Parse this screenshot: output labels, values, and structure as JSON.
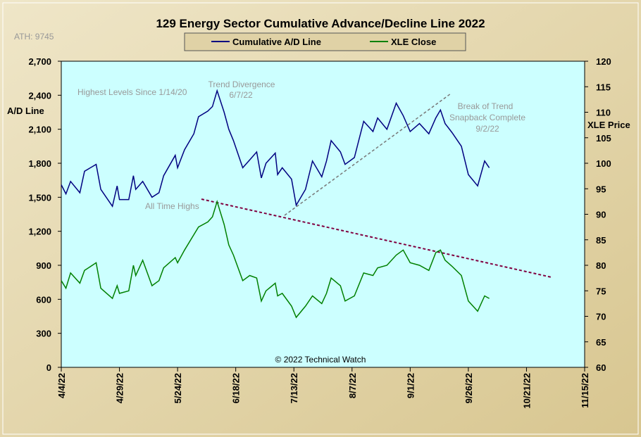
{
  "chart_data": {
    "type": "line",
    "title": "129 Energy Sector Cumulative Advance/Decline Line 2022",
    "ath": "ATH: 9745",
    "ylabel": "A/D Line",
    "y2label": "XLE Price",
    "copyright": "© 2022 Technical Watch",
    "annotations": [
      "Highest Levels  Since 1/14/20",
      "Trend  Divergence",
      "6/7/22",
      "All Time Highs",
      "Break of Trend",
      "Snapback Complete",
      "9/2/22"
    ],
    "x": [
      "2022-04-04",
      "2022-04-06",
      "2022-04-08",
      "2022-04-12",
      "2022-04-14",
      "2022-04-19",
      "2022-04-21",
      "2022-04-26",
      "2022-04-28",
      "2022-04-29",
      "2022-05-03",
      "2022-05-05",
      "2022-05-06",
      "2022-05-09",
      "2022-05-13",
      "2022-05-16",
      "2022-05-18",
      "2022-05-23",
      "2022-05-24",
      "2022-05-27",
      "2022-05-31",
      "2022-06-02",
      "2022-06-06",
      "2022-06-08",
      "2022-06-10",
      "2022-06-13",
      "2022-06-15",
      "2022-06-17",
      "2022-06-21",
      "2022-06-24",
      "2022-06-27",
      "2022-06-29",
      "2022-07-01",
      "2022-07-05",
      "2022-07-06",
      "2022-07-08",
      "2022-07-12",
      "2022-07-14",
      "2022-07-18",
      "2022-07-21",
      "2022-07-25",
      "2022-07-27",
      "2022-07-29",
      "2022-08-02",
      "2022-08-04",
      "2022-08-08",
      "2022-08-12",
      "2022-08-16",
      "2022-08-18",
      "2022-08-22",
      "2022-08-26",
      "2022-08-29",
      "2022-09-01",
      "2022-09-05",
      "2022-09-09",
      "2022-09-12",
      "2022-09-14",
      "2022-09-16",
      "2022-09-19",
      "2022-09-23",
      "2022-09-26",
      "2022-09-30",
      "2022-10-03",
      "2022-10-05"
    ],
    "series": [
      {
        "name": "Cumulative A/D Line",
        "color": "#000080",
        "values": [
          1610,
          1530,
          1640,
          1540,
          1730,
          1790,
          1570,
          1420,
          1600,
          1480,
          1480,
          1690,
          1570,
          1640,
          1500,
          1540,
          1690,
          1870,
          1760,
          1920,
          2060,
          2210,
          2260,
          2300,
          2440,
          2250,
          2100,
          2000,
          1760,
          1830,
          1900,
          1670,
          1800,
          1890,
          1700,
          1760,
          1660,
          1430,
          1570,
          1820,
          1680,
          1820,
          2000,
          1900,
          1790,
          1850,
          2170,
          2080,
          2200,
          2100,
          2330,
          2220,
          2080,
          2150,
          2060,
          2200,
          2270,
          2150,
          2070,
          1950,
          1700,
          1600,
          1820,
          1760
        ]
      },
      {
        "name": "XLE Close",
        "color": "#008000",
        "axis": "y2",
        "values": [
          77,
          75.5,
          78.5,
          76.5,
          79,
          80.5,
          75.5,
          73.5,
          76,
          74.5,
          75,
          80,
          78,
          81,
          76,
          77,
          79.5,
          81.5,
          80.5,
          83,
          86,
          87.5,
          88.5,
          89.5,
          92.5,
          88,
          84,
          82,
          77,
          78,
          77.5,
          73,
          75,
          76.5,
          74,
          74.5,
          72,
          69.8,
          72,
          74,
          72.5,
          74.5,
          77.5,
          76,
          73,
          74,
          78.5,
          78,
          79.5,
          80,
          82,
          83,
          80.5,
          80,
          79,
          82.5,
          83,
          81,
          79.8,
          78,
          73,
          71,
          74,
          73.5
        ]
      }
    ],
    "xlim": [
      "2022-04-04",
      "2022-11-15"
    ],
    "xticks": [
      {
        "value": "2022-04-04",
        "label": "4/4/22"
      },
      {
        "value": "2022-04-29",
        "label": "4/29/22"
      },
      {
        "value": "2022-05-24",
        "label": "5/24/22"
      },
      {
        "value": "2022-06-18",
        "label": "6/18/22"
      },
      {
        "value": "2022-07-13",
        "label": "7/13/22"
      },
      {
        "value": "2022-08-07",
        "label": "8/7/22"
      },
      {
        "value": "2022-09-01",
        "label": "9/1/22"
      },
      {
        "value": "2022-09-26",
        "label": "9/26/22"
      },
      {
        "value": "2022-10-21",
        "label": "10/21/22"
      },
      {
        "value": "2022-11-15",
        "label": "11/15/22"
      }
    ],
    "ylim": [
      0,
      2700
    ],
    "yticks": [
      0,
      300,
      600,
      900,
      {
        "value": 1200,
        "label": "1,200"
      },
      {
        "value": 1500,
        "label": "1,500"
      },
      {
        "value": 1800,
        "label": "1,800"
      },
      {
        "value": 2100,
        "label": "2,100"
      },
      {
        "value": 2400,
        "label": "2,400"
      },
      {
        "value": 2700,
        "label": "2,700"
      }
    ],
    "y2lim": [
      60,
      120
    ],
    "y2ticks": [
      60,
      65,
      70,
      75,
      80,
      85,
      90,
      95,
      100,
      105,
      110,
      115,
      120
    ]
  }
}
